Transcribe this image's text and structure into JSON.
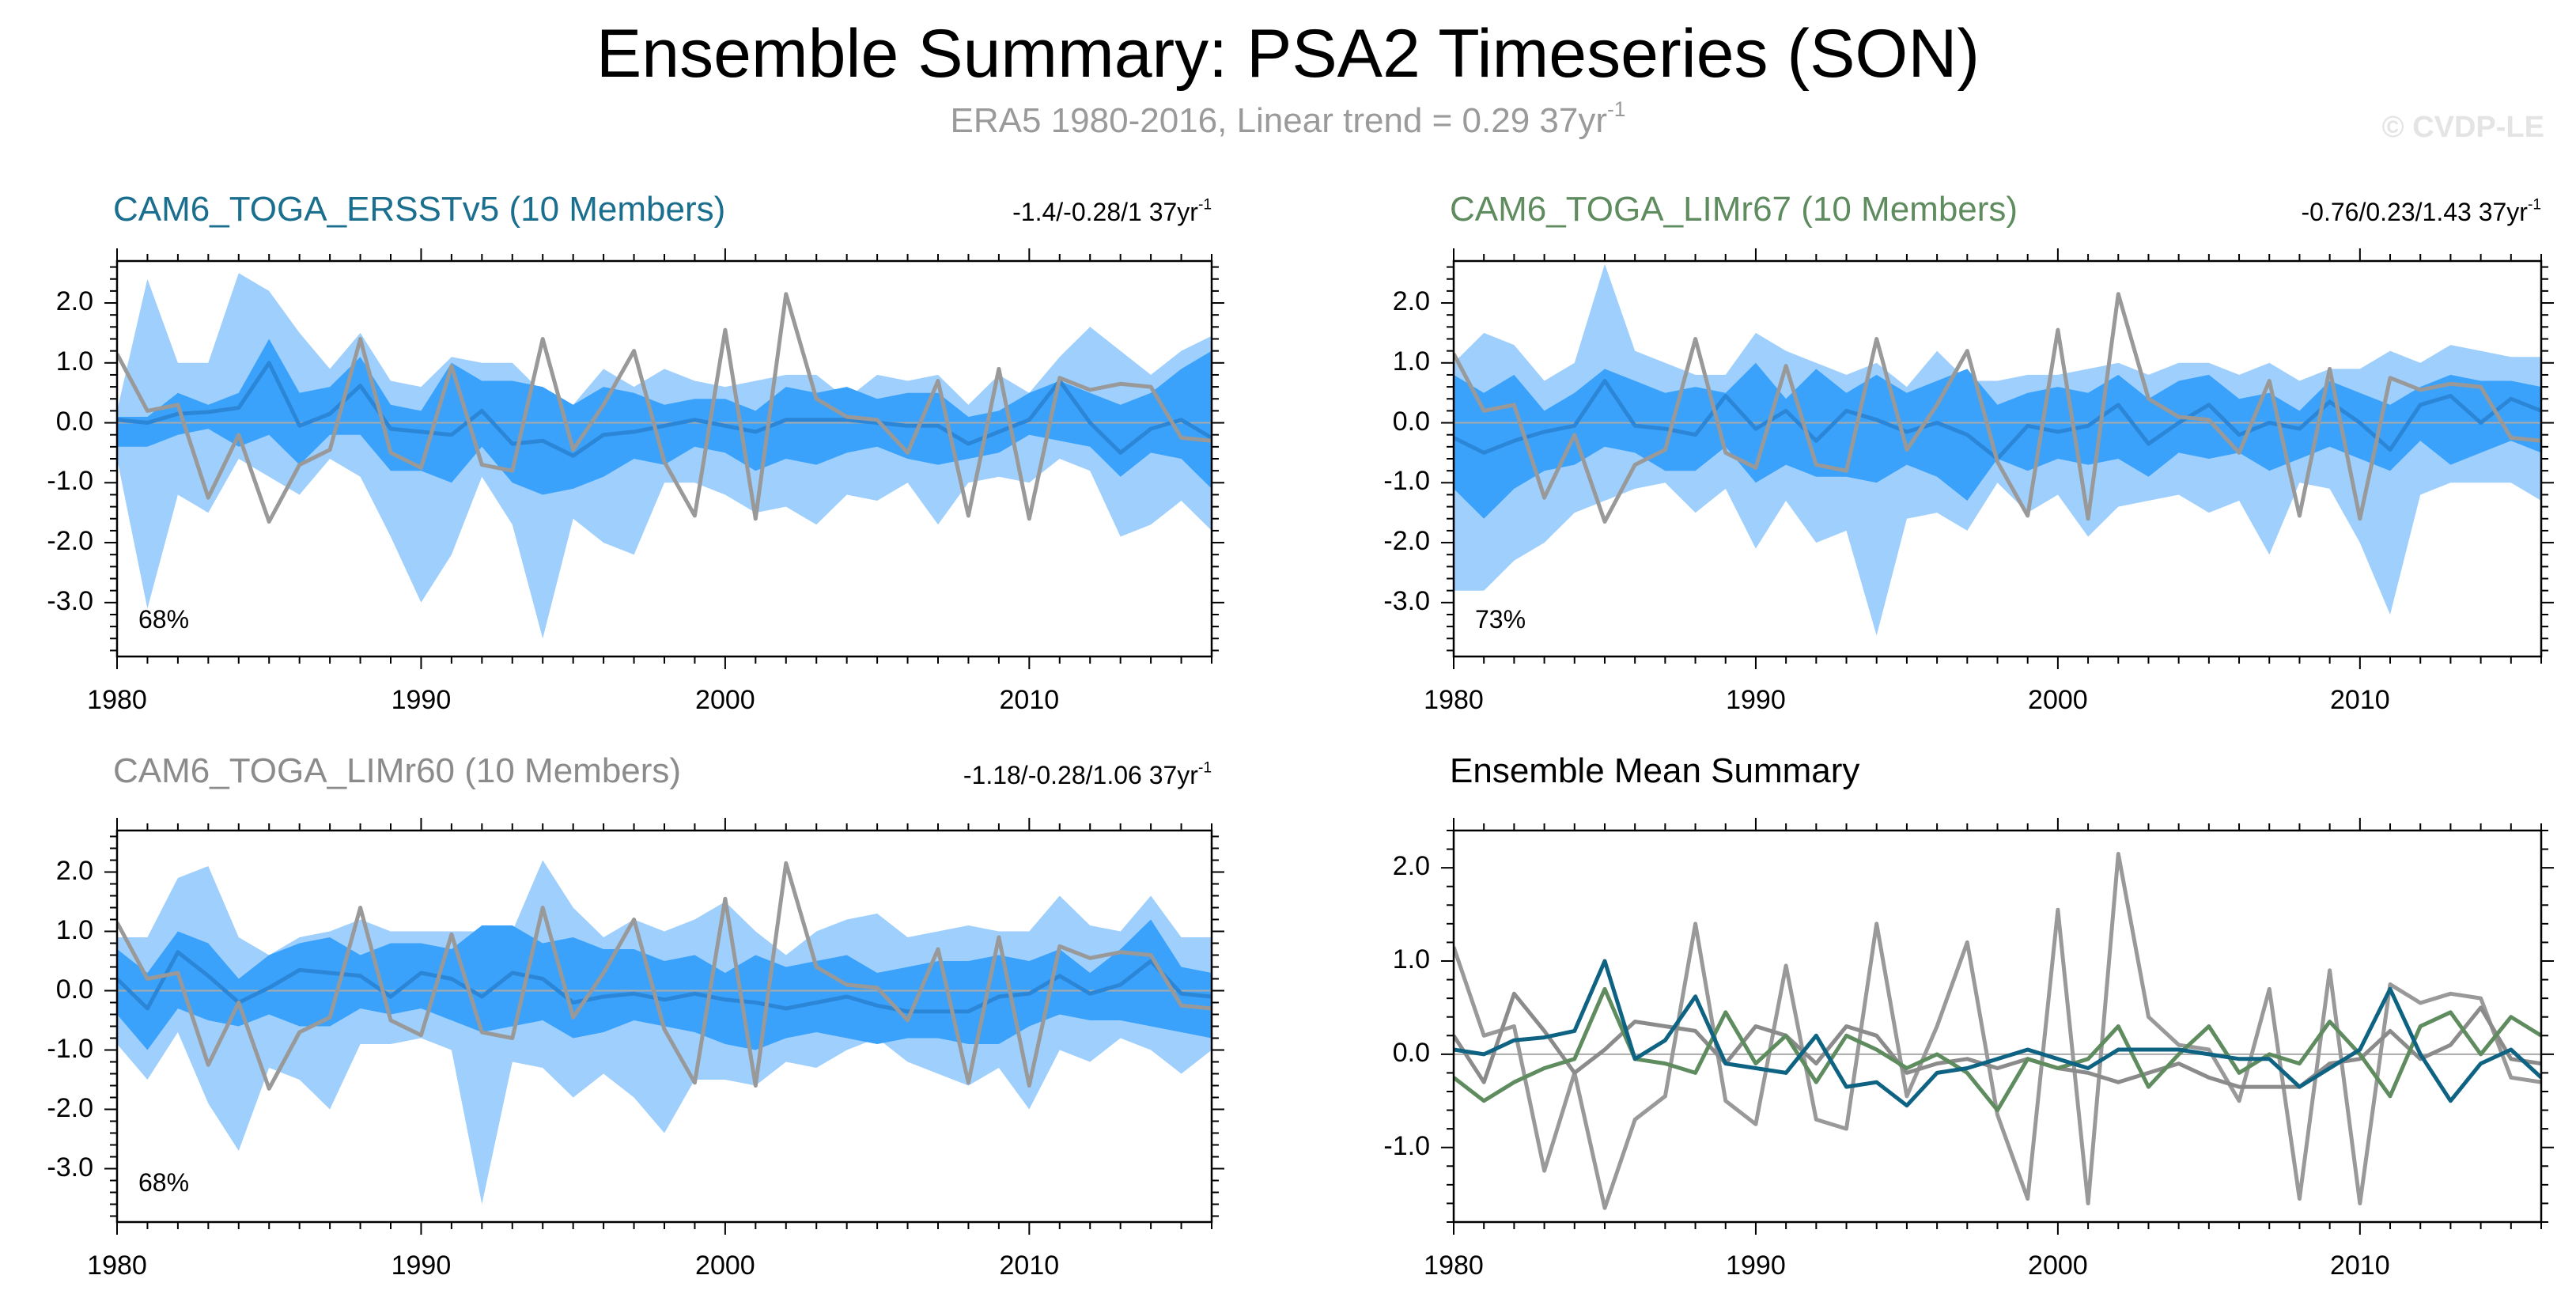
{
  "header": {
    "title": "Ensemble Summary: PSA2 Timeseries (SON)",
    "subtitle_main": "ERA5 1980-2016, Linear trend = 0.29 37yr",
    "subtitle_sup": "-1",
    "watermark": "© CVDP-LE"
  },
  "colors": {
    "outer_band": "#9fcffc",
    "inner_band": "#3aa2fb",
    "ens_mean": "#2c86d7",
    "obs": "#999999",
    "ersst": "#0e6282",
    "limr67": "#5f8c5f",
    "limr60": "#8b8b8b"
  },
  "chart_data": [
    {
      "type": "area",
      "title": "CAM6_TOGA_ERSSTv5 (10 Members)",
      "title_color": "#1a6e8e",
      "trend_text": "-1.4/-0.28/1 37yr",
      "trend_sup": "-1",
      "percent_label": "68%",
      "xlim": [
        1980,
        2016
      ],
      "ylim": [
        -3.9,
        2.7
      ],
      "yticks": [
        2.0,
        1.0,
        0.0,
        -1.0,
        -2.0,
        -3.0
      ],
      "ytick_labels": [
        "2.0",
        "1.0",
        "0.0",
        "-1.0",
        "-2.0",
        "-3.0"
      ],
      "xticks": [
        1980,
        1990,
        2000,
        2010
      ],
      "xtick_labels": [
        "1980",
        "1990",
        "2000",
        "2010"
      ],
      "outer_upper": [
        0.2,
        2.4,
        1.0,
        1.0,
        2.5,
        2.2,
        1.5,
        0.9,
        1.5,
        0.7,
        0.6,
        1.1,
        1.0,
        1.0,
        0.5,
        0.3,
        0.9,
        0.6,
        0.9,
        0.7,
        0.6,
        0.7,
        0.8,
        0.8,
        0.4,
        0.8,
        0.7,
        0.8,
        0.3,
        0.8,
        0.5,
        1.1,
        1.6,
        1.2,
        0.8,
        1.2,
        1.45
      ],
      "outer_lower": [
        -0.6,
        -3.1,
        -1.2,
        -1.5,
        -0.6,
        -0.9,
        -1.2,
        -0.6,
        -0.9,
        -1.9,
        -3.0,
        -2.2,
        -0.9,
        -1.7,
        -3.6,
        -1.6,
        -2.0,
        -2.2,
        -1.0,
        -1.0,
        -1.2,
        -1.5,
        -1.4,
        -1.7,
        -1.2,
        -1.3,
        -1.0,
        -1.7,
        -1.0,
        -0.9,
        -1.0,
        -0.6,
        -0.8,
        -1.9,
        -1.7,
        -1.3,
        -1.8
      ],
      "inner_upper": [
        0.1,
        0.1,
        0.5,
        0.3,
        0.5,
        1.4,
        0.5,
        0.6,
        1.1,
        0.3,
        0.2,
        1.0,
        0.7,
        0.7,
        0.6,
        0.3,
        0.6,
        0.5,
        0.3,
        0.4,
        0.4,
        0.2,
        0.6,
        0.5,
        0.6,
        0.4,
        0.5,
        0.5,
        0.1,
        0.2,
        0.5,
        0.7,
        0.5,
        0.3,
        0.5,
        0.9,
        1.2
      ],
      "inner_lower": [
        -0.4,
        -0.4,
        -0.2,
        -0.1,
        -0.4,
        -0.2,
        -0.7,
        -0.2,
        -0.2,
        -0.8,
        -0.8,
        -1.0,
        -0.4,
        -1.0,
        -1.2,
        -1.1,
        -0.9,
        -0.6,
        -0.7,
        -0.4,
        -0.5,
        -0.8,
        -0.6,
        -0.7,
        -0.5,
        -0.4,
        -0.6,
        -0.7,
        -0.6,
        -0.5,
        -0.2,
        -0.3,
        -0.4,
        -0.9,
        -0.5,
        -0.6,
        -1.1
      ],
      "ens_mean": [
        0.05,
        0.0,
        0.15,
        0.18,
        0.25,
        1.0,
        -0.05,
        0.15,
        0.62,
        -0.1,
        -0.15,
        -0.2,
        0.2,
        -0.35,
        -0.3,
        -0.55,
        -0.2,
        -0.15,
        -0.05,
        0.05,
        -0.05,
        -0.15,
        0.05,
        0.05,
        0.05,
        0.0,
        -0.05,
        -0.05,
        -0.35,
        -0.15,
        0.05,
        0.7,
        0.0,
        -0.5,
        -0.1,
        0.05,
        -0.25
      ],
      "obs": [
        1.15,
        0.2,
        0.3,
        -1.25,
        -0.2,
        -1.65,
        -0.7,
        -0.45,
        1.4,
        -0.5,
        -0.75,
        0.95,
        -0.7,
        -0.8,
        1.4,
        -0.45,
        0.3,
        1.2,
        -0.65,
        -1.55,
        1.55,
        -1.6,
        2.15,
        0.4,
        0.1,
        0.05,
        -0.5,
        0.7,
        -1.55,
        0.9,
        -1.6,
        0.75,
        0.55,
        0.65,
        0.6,
        -0.25,
        -0.3
      ]
    },
    {
      "type": "area",
      "title": "CAM6_TOGA_LIMr67 (10 Members)",
      "title_color": "#5f8c5f",
      "trend_text": "-0.76/0.23/1.43 37yr",
      "trend_sup": "-1",
      "percent_label": "73%",
      "xlim": [
        1980,
        2016
      ],
      "ylim": [
        -3.9,
        2.7
      ],
      "yticks": [
        2.0,
        1.0,
        0.0,
        -1.0,
        -2.0,
        -3.0
      ],
      "ytick_labels": [
        "2.0",
        "1.0",
        "0.0",
        "-1.0",
        "-2.0",
        "-3.0"
      ],
      "xticks": [
        1980,
        1990,
        2000,
        2010
      ],
      "xtick_labels": [
        "1980",
        "1990",
        "2000",
        "2010"
      ],
      "outer_upper": [
        1.0,
        1.5,
        1.3,
        0.7,
        1.0,
        2.65,
        1.2,
        1.0,
        0.8,
        0.8,
        1.5,
        1.2,
        1.0,
        0.8,
        1.0,
        0.6,
        1.2,
        0.7,
        0.7,
        0.8,
        0.8,
        0.9,
        1.0,
        0.8,
        1.0,
        1.0,
        0.8,
        1.0,
        0.7,
        0.9,
        0.9,
        1.2,
        1.0,
        1.3,
        1.2,
        1.1,
        1.1
      ],
      "outer_lower": [
        -2.8,
        -2.8,
        -2.3,
        -2.0,
        -1.5,
        -1.3,
        -1.1,
        -1.0,
        -1.5,
        -1.1,
        -2.1,
        -1.3,
        -2.0,
        -1.8,
        -3.55,
        -1.6,
        -1.5,
        -1.8,
        -1.0,
        -1.5,
        -1.2,
        -1.9,
        -1.4,
        -1.3,
        -1.2,
        -1.5,
        -1.3,
        -2.2,
        -1.0,
        -1.1,
        -2.0,
        -3.2,
        -1.2,
        -1.0,
        -1.0,
        -1.0,
        -1.3
      ],
      "inner_upper": [
        0.8,
        0.5,
        0.8,
        0.2,
        0.5,
        0.9,
        0.7,
        0.5,
        0.6,
        0.5,
        1.0,
        0.4,
        0.9,
        0.5,
        0.8,
        0.5,
        0.7,
        0.9,
        0.3,
        0.5,
        0.6,
        0.5,
        0.8,
        0.4,
        0.7,
        0.8,
        0.4,
        0.5,
        0.2,
        0.7,
        0.5,
        0.3,
        0.6,
        0.8,
        0.7,
        0.7,
        0.6
      ],
      "inner_lower": [
        -1.1,
        -1.6,
        -1.1,
        -0.8,
        -0.7,
        -0.4,
        -0.5,
        -0.8,
        -0.8,
        -0.4,
        -1.0,
        -0.7,
        -0.9,
        -0.9,
        -1.0,
        -0.7,
        -0.9,
        -1.3,
        -0.6,
        -0.8,
        -0.6,
        -0.7,
        -0.6,
        -0.9,
        -0.5,
        -0.6,
        -0.5,
        -0.8,
        -0.6,
        -0.4,
        -0.6,
        -0.8,
        -0.3,
        -0.7,
        -0.5,
        -0.3,
        -0.5
      ],
      "ens_mean": [
        -0.25,
        -0.5,
        -0.3,
        -0.15,
        -0.05,
        0.7,
        -0.05,
        -0.1,
        -0.2,
        0.45,
        -0.1,
        0.2,
        -0.3,
        0.2,
        0.05,
        -0.15,
        0.0,
        -0.2,
        -0.6,
        -0.05,
        -0.15,
        -0.05,
        0.3,
        -0.35,
        0.0,
        0.3,
        -0.2,
        0.0,
        -0.1,
        0.35,
        0.0,
        -0.45,
        0.3,
        0.45,
        0.0,
        0.4,
        0.2
      ],
      "obs": [
        1.15,
        0.2,
        0.3,
        -1.25,
        -0.2,
        -1.65,
        -0.7,
        -0.45,
        1.4,
        -0.5,
        -0.75,
        0.95,
        -0.7,
        -0.8,
        1.4,
        -0.45,
        0.3,
        1.2,
        -0.65,
        -1.55,
        1.55,
        -1.6,
        2.15,
        0.4,
        0.1,
        0.05,
        -0.5,
        0.7,
        -1.55,
        0.9,
        -1.6,
        0.75,
        0.55,
        0.65,
        0.6,
        -0.25,
        -0.3
      ]
    },
    {
      "type": "area",
      "title": "CAM6_TOGA_LIMr60 (10 Members)",
      "title_color": "#8b8b8b",
      "trend_text": "-1.18/-0.28/1.06 37yr",
      "trend_sup": "-1",
      "percent_label": "68%",
      "xlim": [
        1980,
        2016
      ],
      "ylim": [
        -3.9,
        2.7
      ],
      "yticks": [
        2.0,
        1.0,
        0.0,
        -1.0,
        -2.0,
        -3.0
      ],
      "ytick_labels": [
        "2.0",
        "1.0",
        "0.0",
        "-1.0",
        "-2.0",
        "-3.0"
      ],
      "xticks": [
        1980,
        1990,
        2000,
        2010
      ],
      "xtick_labels": [
        "1980",
        "1990",
        "2000",
        "2010"
      ],
      "outer_upper": [
        0.9,
        0.9,
        1.9,
        2.1,
        0.9,
        0.6,
        0.9,
        1.0,
        1.2,
        1.0,
        1.0,
        1.0,
        1.0,
        1.0,
        2.2,
        1.4,
        0.9,
        1.2,
        1.0,
        1.2,
        1.5,
        1.0,
        0.6,
        1.0,
        1.2,
        1.3,
        0.9,
        1.0,
        1.1,
        1.0,
        1.0,
        1.6,
        1.1,
        1.0,
        1.6,
        0.9,
        0.9
      ],
      "outer_lower": [
        -0.9,
        -1.5,
        -0.7,
        -1.9,
        -2.7,
        -1.3,
        -1.5,
        -2.0,
        -0.9,
        -0.9,
        -0.8,
        -1.0,
        -3.6,
        -1.2,
        -1.3,
        -1.8,
        -1.4,
        -1.8,
        -2.4,
        -1.5,
        -1.5,
        -1.6,
        -1.2,
        -1.3,
        -1.0,
        -0.8,
        -1.2,
        -1.4,
        -1.6,
        -1.3,
        -2.0,
        -1.0,
        -1.2,
        -0.8,
        -1.0,
        -1.4,
        -1.0
      ],
      "inner_upper": [
        0.7,
        0.3,
        1.0,
        0.8,
        0.2,
        0.6,
        0.8,
        0.9,
        0.6,
        0.8,
        0.8,
        0.7,
        1.1,
        1.1,
        0.8,
        0.9,
        0.7,
        0.7,
        0.5,
        0.6,
        0.3,
        0.6,
        0.4,
        0.5,
        0.6,
        0.3,
        0.4,
        0.5,
        0.5,
        0.6,
        0.5,
        0.7,
        0.3,
        0.7,
        1.2,
        0.4,
        0.3
      ],
      "inner_lower": [
        -0.4,
        -1.0,
        -0.3,
        -0.5,
        -0.6,
        -0.4,
        -0.6,
        -0.6,
        -0.3,
        -0.4,
        -0.3,
        -0.5,
        -0.7,
        -0.6,
        -0.5,
        -0.8,
        -0.7,
        -0.5,
        -0.6,
        -0.7,
        -0.9,
        -1.0,
        -0.8,
        -0.7,
        -0.8,
        -0.9,
        -0.8,
        -0.8,
        -0.9,
        -0.9,
        -0.6,
        -0.4,
        -0.5,
        -0.5,
        -0.6,
        -0.7,
        -0.8
      ],
      "ens_mean": [
        0.2,
        -0.3,
        0.65,
        0.25,
        -0.2,
        0.05,
        0.35,
        0.3,
        0.25,
        -0.1,
        0.3,
        0.2,
        -0.1,
        0.3,
        0.2,
        -0.2,
        -0.1,
        -0.05,
        -0.15,
        -0.05,
        -0.15,
        -0.2,
        -0.3,
        -0.2,
        -0.1,
        -0.25,
        -0.35,
        -0.35,
        -0.35,
        -0.1,
        -0.05,
        0.25,
        -0.05,
        0.1,
        0.5,
        -0.05,
        -0.1
      ],
      "obs": [
        1.15,
        0.2,
        0.3,
        -1.25,
        -0.2,
        -1.65,
        -0.7,
        -0.45,
        1.4,
        -0.5,
        -0.75,
        0.95,
        -0.7,
        -0.8,
        1.4,
        -0.45,
        0.3,
        1.2,
        -0.65,
        -1.55,
        1.55,
        -1.6,
        2.15,
        0.4,
        0.1,
        0.05,
        -0.5,
        0.7,
        -1.55,
        0.9,
        -1.6,
        0.75,
        0.55,
        0.65,
        0.6,
        -0.25,
        -0.3
      ]
    },
    {
      "type": "line",
      "title": "Ensemble Mean Summary",
      "title_color": "#000000",
      "xlim": [
        1980,
        2016
      ],
      "ylim": [
        -1.8,
        2.4
      ],
      "yticks": [
        2.0,
        1.0,
        0.0,
        -1.0
      ],
      "ytick_labels": [
        "2.0",
        "1.0",
        "0.0",
        "-1.0"
      ],
      "xticks": [
        1980,
        1990,
        2000,
        2010
      ],
      "xtick_labels": [
        "1980",
        "1990",
        "2000",
        "2010"
      ],
      "series": [
        {
          "name": "ERA5",
          "color_key": "obs",
          "values": [
            1.15,
            0.2,
            0.3,
            -1.25,
            -0.2,
            -1.65,
            -0.7,
            -0.45,
            1.4,
            -0.5,
            -0.75,
            0.95,
            -0.7,
            -0.8,
            1.4,
            -0.45,
            0.3,
            1.2,
            -0.65,
            -1.55,
            1.55,
            -1.6,
            2.15,
            0.4,
            0.1,
            0.05,
            -0.5,
            0.7,
            -1.55,
            0.9,
            -1.6,
            0.75,
            0.55,
            0.65,
            0.6,
            -0.25,
            -0.3
          ]
        },
        {
          "name": "CAM6_TOGA_LIMr60",
          "color_key": "limr60",
          "values": [
            0.2,
            -0.3,
            0.65,
            0.25,
            -0.2,
            0.05,
            0.35,
            0.3,
            0.25,
            -0.1,
            0.3,
            0.2,
            -0.1,
            0.3,
            0.2,
            -0.2,
            -0.1,
            -0.05,
            -0.15,
            -0.05,
            -0.15,
            -0.2,
            -0.3,
            -0.2,
            -0.1,
            -0.25,
            -0.35,
            -0.35,
            -0.35,
            -0.1,
            -0.05,
            0.25,
            -0.05,
            0.1,
            0.5,
            -0.05,
            -0.1
          ]
        },
        {
          "name": "CAM6_TOGA_LIMr67",
          "color_key": "limr67",
          "values": [
            -0.25,
            -0.5,
            -0.3,
            -0.15,
            -0.05,
            0.7,
            -0.05,
            -0.1,
            -0.2,
            0.45,
            -0.1,
            0.2,
            -0.3,
            0.2,
            0.05,
            -0.15,
            0.0,
            -0.2,
            -0.6,
            -0.05,
            -0.15,
            -0.05,
            0.3,
            -0.35,
            0.0,
            0.3,
            -0.2,
            0.0,
            -0.1,
            0.35,
            0.0,
            -0.45,
            0.3,
            0.45,
            0.0,
            0.4,
            0.2
          ]
        },
        {
          "name": "CAM6_TOGA_ERSSTv5",
          "color_key": "ersst",
          "values": [
            0.05,
            0.0,
            0.15,
            0.18,
            0.25,
            1.0,
            -0.05,
            0.15,
            0.62,
            -0.1,
            -0.15,
            -0.2,
            0.2,
            -0.35,
            -0.3,
            -0.55,
            -0.2,
            -0.15,
            -0.05,
            0.05,
            -0.05,
            -0.15,
            0.05,
            0.05,
            0.05,
            0.0,
            -0.05,
            -0.05,
            -0.35,
            -0.15,
            0.05,
            0.7,
            0.0,
            -0.5,
            -0.1,
            0.05,
            -0.25
          ]
        }
      ]
    }
  ]
}
